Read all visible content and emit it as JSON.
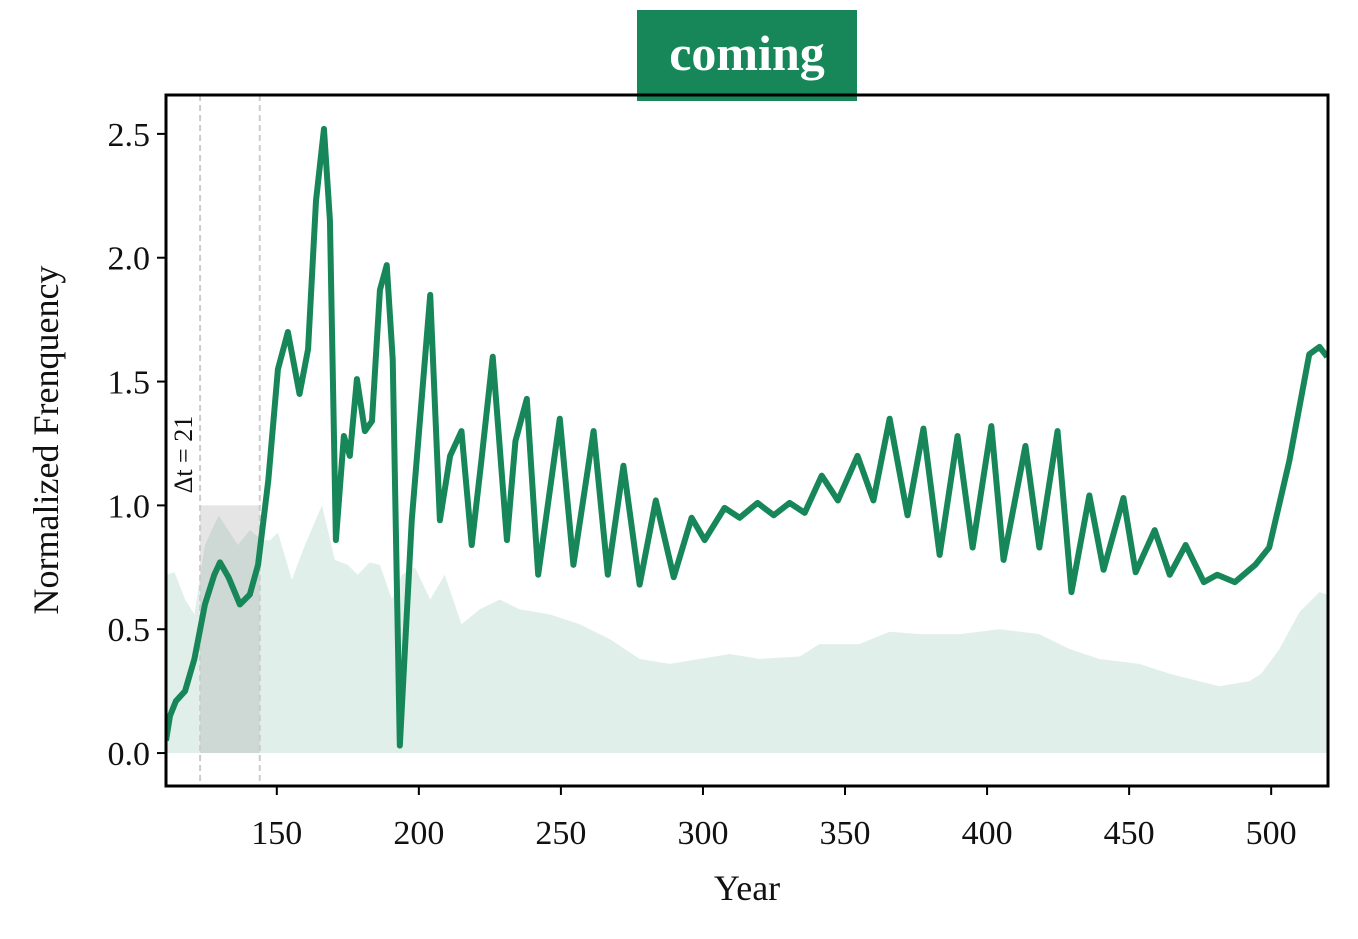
{
  "chart_data": {
    "type": "line",
    "title": "coming",
    "title_color": "#17875a",
    "xlabel": "Year",
    "ylabel": "Normalized Frenquency",
    "xlim": [
      111,
      520
    ],
    "ylim": [
      -0.133,
      2.657
    ],
    "xticks": [
      150,
      200,
      250,
      300,
      350,
      400,
      450,
      500
    ],
    "yticks": [
      {
        "value": 0,
        "label": "0.0"
      },
      0.5,
      {
        "value": 1,
        "label": "1.0"
      },
      1.5,
      {
        "value": 2,
        "label": "2.0"
      },
      2.5
    ],
    "annotation": {
      "text": "Δt = 21",
      "x": [
        123,
        144
      ],
      "y": [
        0,
        1.0
      ]
    },
    "series": [
      {
        "kind": "area",
        "color": "#17875a",
        "x": [
          111,
          114,
          117.7,
          121,
          124.7,
          129.5,
          136.3,
          140.5,
          144.8,
          147.6,
          150.4,
          155.3,
          159.9,
          165.9,
          170.4,
          175,
          178.5,
          182.7,
          186.3,
          190.5,
          194,
          198.6,
          204,
          209.1,
          215,
          221.4,
          228.5,
          235.5,
          246,
          256.6,
          267.2,
          277.7,
          288.3,
          298.8,
          309.4,
          320,
          334,
          341,
          355,
          365.7,
          376.3,
          390.3,
          404.3,
          418.4,
          429,
          439.5,
          453.6,
          464.3,
          474.7,
          481.7,
          492.3,
          496.5,
          502.9,
          510,
          517,
          519.7
        ],
        "values": [
          0.72,
          0.73,
          0.62,
          0.56,
          0.84,
          0.96,
          0.84,
          0.9,
          0.86,
          0.86,
          0.89,
          0.7,
          0.84,
          1.0,
          0.78,
          0.76,
          0.72,
          0.77,
          0.76,
          0.62,
          0.72,
          0.75,
          0.62,
          0.72,
          0.52,
          0.58,
          0.62,
          0.58,
          0.56,
          0.52,
          0.46,
          0.38,
          0.36,
          0.38,
          0.4,
          0.38,
          0.39,
          0.44,
          0.44,
          0.49,
          0.48,
          0.48,
          0.5,
          0.48,
          0.42,
          0.38,
          0.36,
          0.32,
          0.29,
          0.27,
          0.29,
          0.32,
          0.42,
          0.57,
          0.65,
          0.64
        ]
      },
      {
        "kind": "line",
        "color": "#17875a",
        "x": [
          111,
          112.4,
          114.5,
          117.7,
          121,
          124.7,
          128,
          130,
          133,
          137,
          140.5,
          143.4,
          147,
          150.4,
          153.9,
          158,
          161,
          163.8,
          166.6,
          168.7,
          170.8,
          173.6,
          175.7,
          178.2,
          181,
          183.5,
          186.3,
          188.7,
          190.8,
          193.3,
          197.5,
          201,
          204,
          207.4,
          211,
          215,
          218.6,
          222,
          226,
          231,
          234,
          238,
          242,
          249.6,
          254.4,
          261.5,
          266.5,
          272,
          277.7,
          283.4,
          289.7,
          296,
          300.6,
          307.6,
          312.9,
          319.2,
          324.9,
          330.5,
          335.8,
          341.8,
          347.5,
          354.4,
          360,
          365.7,
          372,
          377.6,
          383.3,
          389.6,
          394.9,
          401.5,
          405.8,
          413.5,
          418.4,
          424.8,
          429.7,
          436,
          441,
          448,
          452.3,
          459,
          464.3,
          469.9,
          476.3,
          481,
          487.2,
          494.4,
          499.3,
          506.4,
          513.4,
          517,
          519.7
        ],
        "values": [
          0.05,
          0.15,
          0.21,
          0.25,
          0.38,
          0.6,
          0.72,
          0.77,
          0.71,
          0.6,
          0.64,
          0.76,
          1.1,
          1.55,
          1.7,
          1.45,
          1.63,
          2.23,
          2.52,
          2.15,
          0.86,
          1.28,
          1.2,
          1.51,
          1.3,
          1.34,
          1.87,
          1.97,
          1.59,
          0.03,
          0.94,
          1.43,
          1.85,
          0.94,
          1.2,
          1.3,
          0.84,
          1.18,
          1.6,
          0.86,
          1.26,
          1.43,
          0.72,
          1.35,
          0.76,
          1.3,
          0.72,
          1.16,
          0.68,
          1.02,
          0.71,
          0.95,
          0.86,
          0.99,
          0.95,
          1.01,
          0.96,
          1.01,
          0.97,
          1.12,
          1.02,
          1.2,
          1.02,
          1.35,
          0.96,
          1.31,
          0.8,
          1.28,
          0.83,
          1.32,
          0.78,
          1.24,
          0.83,
          1.3,
          0.65,
          1.04,
          0.74,
          1.03,
          0.73,
          0.9,
          0.72,
          0.84,
          0.69,
          0.72,
          0.69,
          0.76,
          0.83,
          1.18,
          1.61,
          1.64,
          1.6
        ]
      }
    ]
  }
}
